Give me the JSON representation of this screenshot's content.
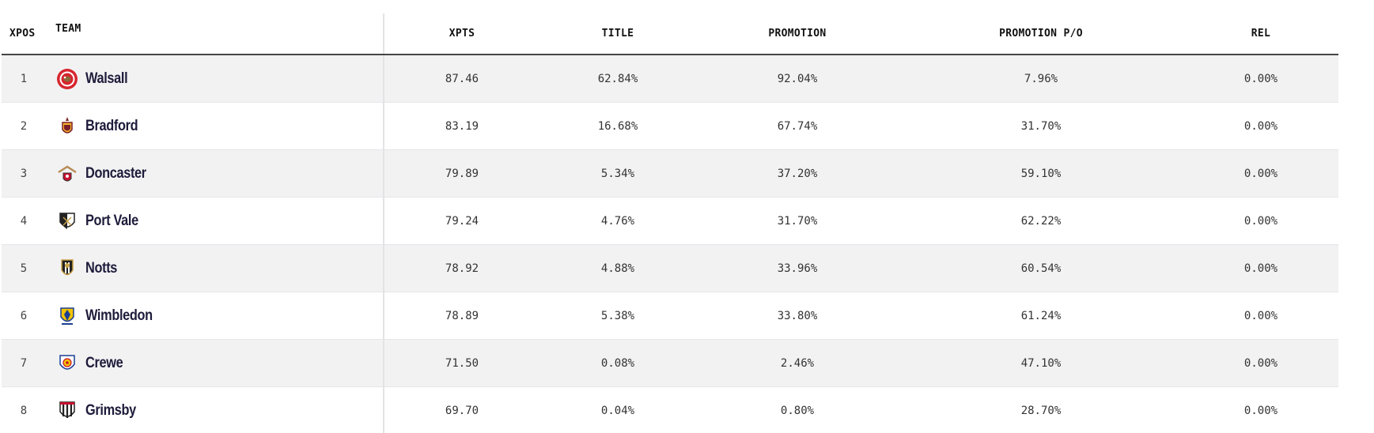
{
  "columns": {
    "pos": "XPOS",
    "team": "TEAM",
    "xpts": "XPTS",
    "title": "TITLE",
    "promotion": "PROMOTION",
    "promotion_po": "PROMOTION P/O",
    "rel": "REL"
  },
  "rows": [
    {
      "pos": "1",
      "team": "Walsall",
      "crest": "walsall-crest-icon",
      "xpts": "87.46",
      "title": "62.84%",
      "promotion": "92.04%",
      "promotion_po": "7.96%",
      "rel": "0.00%"
    },
    {
      "pos": "2",
      "team": "Bradford",
      "crest": "bradford-crest-icon",
      "xpts": "83.19",
      "title": "16.68%",
      "promotion": "67.74%",
      "promotion_po": "31.70%",
      "rel": "0.00%"
    },
    {
      "pos": "3",
      "team": "Doncaster",
      "crest": "doncaster-crest-icon",
      "xpts": "79.89",
      "title": "5.34%",
      "promotion": "37.20%",
      "promotion_po": "59.10%",
      "rel": "0.00%"
    },
    {
      "pos": "4",
      "team": "Port Vale",
      "crest": "port-vale-crest-icon",
      "xpts": "79.24",
      "title": "4.76%",
      "promotion": "31.70%",
      "promotion_po": "62.22%",
      "rel": "0.00%"
    },
    {
      "pos": "5",
      "team": "Notts",
      "crest": "notts-crest-icon",
      "xpts": "78.92",
      "title": "4.88%",
      "promotion": "33.96%",
      "promotion_po": "60.54%",
      "rel": "0.00%"
    },
    {
      "pos": "6",
      "team": "Wimbledon",
      "crest": "wimbledon-crest-icon",
      "xpts": "78.89",
      "title": "5.38%",
      "promotion": "33.80%",
      "promotion_po": "61.24%",
      "rel": "0.00%"
    },
    {
      "pos": "7",
      "team": "Crewe",
      "crest": "crewe-crest-icon",
      "xpts": "71.50",
      "title": "0.08%",
      "promotion": "2.46%",
      "promotion_po": "47.10%",
      "rel": "0.00%"
    },
    {
      "pos": "8",
      "team": "Grimsby",
      "crest": "grimsby-crest-icon",
      "xpts": "69.70",
      "title": "0.04%",
      "promotion": "0.80%",
      "promotion_po": "28.70%",
      "rel": "0.00%"
    }
  ],
  "colors": {
    "row_alt": "#f2f2f3",
    "text_dark": "#1e1b3a",
    "header_rule": "#444444"
  }
}
